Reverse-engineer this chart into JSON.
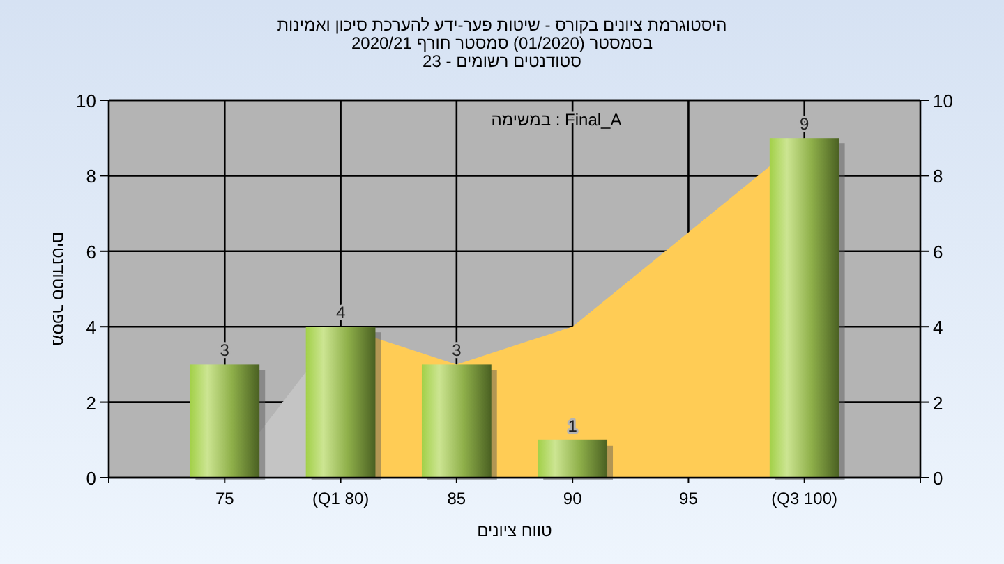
{
  "chart_data": {
    "type": "bar",
    "title": "היסטוגרמת ציונים בקורס - שיטות פער-ידע להערכת סיכון ואמינות\nבסמסטר (01/2020) סמסטר חורף 2020/21\nסטודנטים רשומים - 23",
    "xlabel": "טווח ציונים",
    "ylabel": "מספר סטודנטים",
    "categories": [
      "75",
      "(Q1 80)",
      "85",
      "90",
      "95",
      "(Q3 100)"
    ],
    "series": [
      {
        "type": "area",
        "color": "#c4c4c4",
        "values": [
          0,
          4,
          null,
          null,
          null,
          null
        ]
      },
      {
        "type": "area",
        "color": "#ffcc55",
        "values": [
          null,
          4,
          3,
          4,
          6.5,
          9
        ]
      },
      {
        "color": "#8fb04a",
        "values": [
          3,
          4,
          3,
          1,
          0,
          9
        ],
        "value_labels": [
          "3",
          "4",
          "3",
          "1",
          null,
          "9"
        ]
      }
    ],
    "annotations": [
      "במשימה : Final_A"
    ],
    "ylim": [
      0,
      10
    ],
    "yticks": [
      0,
      2,
      4,
      6,
      8,
      10
    ],
    "y2lim": [
      0,
      10
    ],
    "y2ticks": [
      0,
      2,
      4,
      6,
      8,
      10
    ],
    "grid": true
  }
}
